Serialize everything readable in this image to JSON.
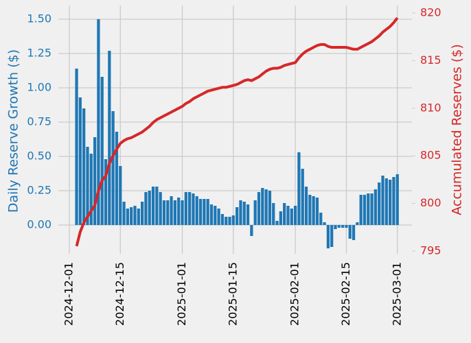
{
  "chart_data": {
    "type": "bar",
    "x": [
      "2024-12-03",
      "2024-12-04",
      "2024-12-05",
      "2024-12-06",
      "2024-12-07",
      "2024-12-08",
      "2024-12-09",
      "2024-12-10",
      "2024-12-11",
      "2024-12-12",
      "2024-12-13",
      "2024-12-14",
      "2024-12-15",
      "2024-12-16",
      "2024-12-17",
      "2024-12-18",
      "2024-12-19",
      "2024-12-20",
      "2024-12-21",
      "2024-12-22",
      "2024-12-23",
      "2024-12-24",
      "2024-12-25",
      "2024-12-26",
      "2024-12-27",
      "2024-12-28",
      "2024-12-29",
      "2024-12-30",
      "2024-12-31",
      "2025-01-01",
      "2025-01-02",
      "2025-01-03",
      "2025-01-04",
      "2025-01-05",
      "2025-01-06",
      "2025-01-07",
      "2025-01-08",
      "2025-01-09",
      "2025-01-10",
      "2025-01-11",
      "2025-01-12",
      "2025-01-13",
      "2025-01-14",
      "2025-01-15",
      "2025-01-16",
      "2025-01-17",
      "2025-01-18",
      "2025-01-19",
      "2025-01-20",
      "2025-01-21",
      "2025-01-22",
      "2025-01-23",
      "2025-01-24",
      "2025-01-25",
      "2025-01-26",
      "2025-01-27",
      "2025-01-28",
      "2025-01-29",
      "2025-01-30",
      "2025-01-31",
      "2025-02-01",
      "2025-02-02",
      "2025-02-03",
      "2025-02-04",
      "2025-02-05",
      "2025-02-06",
      "2025-02-07",
      "2025-02-08",
      "2025-02-09",
      "2025-02-10",
      "2025-02-11",
      "2025-02-12",
      "2025-02-13",
      "2025-02-14",
      "2025-02-15",
      "2025-02-16",
      "2025-02-17",
      "2025-02-18",
      "2025-02-19",
      "2025-02-20",
      "2025-02-21",
      "2025-02-22",
      "2025-02-23",
      "2025-02-24",
      "2025-02-25",
      "2025-02-26",
      "2025-02-27",
      "2025-02-28",
      "2025-03-01"
    ],
    "series": [
      {
        "name": "Daily Reserve Growth ($)",
        "type": "bar",
        "color": "#1f77b4",
        "values": [
          1.14,
          0.93,
          0.85,
          0.57,
          0.52,
          0.64,
          1.5,
          1.08,
          0.48,
          1.27,
          0.83,
          0.68,
          0.43,
          0.17,
          0.12,
          0.13,
          0.14,
          0.12,
          0.17,
          0.24,
          0.25,
          0.28,
          0.28,
          0.24,
          0.18,
          0.18,
          0.21,
          0.18,
          0.2,
          0.18,
          0.24,
          0.24,
          0.23,
          0.21,
          0.19,
          0.19,
          0.19,
          0.15,
          0.14,
          0.12,
          0.08,
          0.06,
          0.06,
          0.07,
          0.13,
          0.18,
          0.17,
          0.15,
          -0.08,
          0.18,
          0.24,
          0.27,
          0.26,
          0.25,
          0.16,
          0.03,
          0.1,
          0.16,
          0.14,
          0.12,
          0.14,
          0.53,
          0.41,
          0.28,
          0.22,
          0.21,
          0.2,
          0.09,
          0.02,
          -0.17,
          -0.16,
          -0.03,
          -0.02,
          -0.02,
          -0.02,
          -0.1,
          -0.11,
          0.02,
          0.22,
          0.22,
          0.23,
          0.23,
          0.26,
          0.31,
          0.36,
          0.34,
          0.33,
          0.35,
          0.37
        ]
      },
      {
        "name": "Accumulated Reserves ($)",
        "type": "line",
        "axis": "y2",
        "color": "#d62728",
        "values": [
          795.5,
          797,
          798,
          798.6,
          799.2,
          799.8,
          801.3,
          802.4,
          802.9,
          804.2,
          805,
          805.7,
          806.3,
          806.6,
          806.8,
          806.9,
          807.1,
          807.3,
          807.5,
          807.8,
          808.1,
          808.5,
          808.8,
          809,
          809.2,
          809.4,
          809.6,
          809.8,
          810,
          810.2,
          810.5,
          810.7,
          811,
          811.2,
          811.4,
          811.6,
          811.8,
          811.9,
          812,
          812.1,
          812.2,
          812.2,
          812.3,
          812.4,
          812.5,
          812.7,
          812.9,
          813,
          812.9,
          813.1,
          813.3,
          813.6,
          813.9,
          814.1,
          814.2,
          814.2,
          814.3,
          814.5,
          814.6,
          814.7,
          814.8,
          815.3,
          815.7,
          816,
          816.2,
          816.4,
          816.6,
          816.7,
          816.7,
          816.5,
          816.4,
          816.4,
          816.4,
          816.4,
          816.4,
          816.3,
          816.2,
          816.2,
          816.4,
          816.6,
          816.8,
          817,
          817.3,
          817.6,
          818,
          818.3,
          818.6,
          819,
          819.5
        ]
      }
    ],
    "xlim": [
      "2024-11-28",
      "2025-03-05"
    ],
    "xticks": [
      "2024-12-01",
      "2024-12-15",
      "2025-01-01",
      "2025-01-15",
      "2025-02-01",
      "2025-02-15",
      "2025-03-01"
    ],
    "ylim": [
      -0.21,
      1.6
    ],
    "yticks": [
      {
        "value": 0,
        "label": "0.00"
      },
      {
        "value": 0.25,
        "label": "0.25"
      },
      {
        "value": 0.5,
        "label": "0.50"
      },
      {
        "value": 0.75,
        "label": "0.75"
      },
      {
        "value": 1,
        "label": "1.00"
      },
      {
        "value": 1.25,
        "label": "1.25"
      },
      {
        "value": 1.5,
        "label": "1.50"
      }
    ],
    "y2lim": [
      794.7,
      820.8
    ],
    "y2ticks": [
      795,
      800,
      805,
      810,
      815,
      820
    ],
    "grid": true
  }
}
